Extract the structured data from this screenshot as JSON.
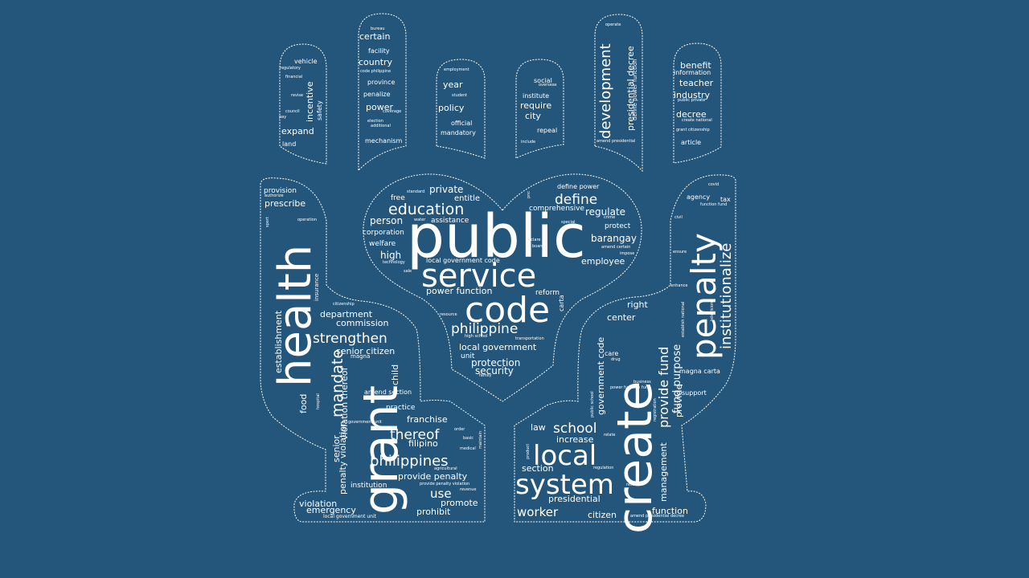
{
  "colors": {
    "background": "#24557a",
    "text": "#ffffff",
    "outline": "#ffffff"
  },
  "shape": "hands-heart-wordcloud",
  "words": [
    {
      "text": "public"
    },
    {
      "text": "service"
    },
    {
      "text": "code"
    },
    {
      "text": "philippine"
    },
    {
      "text": "education"
    },
    {
      "text": "define"
    },
    {
      "text": "regulate"
    },
    {
      "text": "barangay"
    },
    {
      "text": "employee"
    },
    {
      "text": "private"
    },
    {
      "text": "entitle"
    },
    {
      "text": "free"
    },
    {
      "text": "person"
    },
    {
      "text": "corporation"
    },
    {
      "text": "welfare"
    },
    {
      "text": "high"
    },
    {
      "text": "assistance"
    },
    {
      "text": "comprehensive"
    },
    {
      "text": "define power"
    },
    {
      "text": "protect"
    },
    {
      "text": "local government code"
    },
    {
      "text": "power function"
    },
    {
      "text": "reform"
    },
    {
      "text": "local government"
    },
    {
      "text": "unit"
    },
    {
      "text": "protection"
    },
    {
      "text": "security"
    },
    {
      "text": "health"
    },
    {
      "text": "grant"
    },
    {
      "text": "mandate"
    },
    {
      "text": "strengthen"
    },
    {
      "text": "senior citizen"
    },
    {
      "text": "department"
    },
    {
      "text": "commission"
    },
    {
      "text": "prescribe"
    },
    {
      "text": "provision"
    },
    {
      "text": "thereof"
    },
    {
      "text": "philippines"
    },
    {
      "text": "filipino"
    },
    {
      "text": "franchise"
    },
    {
      "text": "practice"
    },
    {
      "text": "amend section"
    },
    {
      "text": "provide penalty"
    },
    {
      "text": "use"
    },
    {
      "text": "promote"
    },
    {
      "text": "prohibit"
    },
    {
      "text": "institution"
    },
    {
      "text": "violation"
    },
    {
      "text": "emergency"
    },
    {
      "text": "food"
    },
    {
      "text": "establishment"
    },
    {
      "text": "violation thereof"
    },
    {
      "text": "senior"
    },
    {
      "text": "penalty violation"
    },
    {
      "text": "child"
    },
    {
      "text": "create"
    },
    {
      "text": "penalty"
    },
    {
      "text": "institutionalize"
    },
    {
      "text": "provide fund"
    },
    {
      "text": "fund purpose"
    },
    {
      "text": "provide"
    },
    {
      "text": "right"
    },
    {
      "text": "center"
    },
    {
      "text": "government code"
    },
    {
      "text": "care"
    },
    {
      "text": "magna carta"
    },
    {
      "text": "support"
    },
    {
      "text": "agency"
    },
    {
      "text": "tax"
    },
    {
      "text": "local"
    },
    {
      "text": "system"
    },
    {
      "text": "school"
    },
    {
      "text": "increase"
    },
    {
      "text": "law"
    },
    {
      "text": "section"
    },
    {
      "text": "worker"
    },
    {
      "text": "presidential"
    },
    {
      "text": "citizen"
    },
    {
      "text": "management"
    },
    {
      "text": "function"
    },
    {
      "text": "vehicle"
    },
    {
      "text": "incentive"
    },
    {
      "text": "safety"
    },
    {
      "text": "expand"
    },
    {
      "text": "land"
    },
    {
      "text": "certain"
    },
    {
      "text": "facility"
    },
    {
      "text": "country"
    },
    {
      "text": "province"
    },
    {
      "text": "penalize"
    },
    {
      "text": "power"
    },
    {
      "text": "mechanism"
    },
    {
      "text": "year"
    },
    {
      "text": "policy"
    },
    {
      "text": "official"
    },
    {
      "text": "mandatory"
    },
    {
      "text": "social"
    },
    {
      "text": "institute"
    },
    {
      "text": "require"
    },
    {
      "text": "city"
    },
    {
      "text": "repeal"
    },
    {
      "text": "development"
    },
    {
      "text": "presidential decree"
    },
    {
      "text": "benefit"
    },
    {
      "text": "information"
    },
    {
      "text": "teacher"
    },
    {
      "text": "industry"
    },
    {
      "text": "decree"
    },
    {
      "text": "article"
    },
    {
      "text": "operate"
    },
    {
      "text": "define power function"
    },
    {
      "text": "amend presidential"
    },
    {
      "text": "bureau"
    },
    {
      "text": "code philippine"
    },
    {
      "text": "election"
    },
    {
      "text": "additional"
    },
    {
      "text": "coverage"
    },
    {
      "text": "employment"
    },
    {
      "text": "student"
    },
    {
      "text": "include"
    },
    {
      "text": "overseas"
    },
    {
      "text": "regulatory"
    },
    {
      "text": "financial"
    },
    {
      "text": "revise"
    },
    {
      "text": "council"
    },
    {
      "text": "pay"
    },
    {
      "text": "public private"
    },
    {
      "text": "create national"
    },
    {
      "text": "grant citizenship"
    },
    {
      "text": "authorize"
    },
    {
      "text": "operation"
    },
    {
      "text": "sport"
    },
    {
      "text": "insurance"
    },
    {
      "text": "citizenship"
    },
    {
      "text": "magna"
    },
    {
      "text": "hospital"
    },
    {
      "text": "government unit"
    },
    {
      "text": "order"
    },
    {
      "text": "basic"
    },
    {
      "text": "medical"
    },
    {
      "text": "agricultural"
    },
    {
      "text": "provide penalty violation"
    },
    {
      "text": "revenue"
    },
    {
      "text": "maintain"
    },
    {
      "text": "local government unit"
    },
    {
      "text": "standard"
    },
    {
      "text": "water"
    },
    {
      "text": "technology"
    },
    {
      "text": "sale"
    },
    {
      "text": "crime"
    },
    {
      "text": "special"
    },
    {
      "text": "declare"
    },
    {
      "text": "board"
    },
    {
      "text": "amend certain"
    },
    {
      "text": "impose"
    },
    {
      "text": "resource"
    },
    {
      "text": "high school"
    },
    {
      "text": "transportation"
    },
    {
      "text": "family"
    },
    {
      "text": "carta"
    },
    {
      "text": "covid"
    },
    {
      "text": "function fund"
    },
    {
      "text": "civil"
    },
    {
      "text": "ensure"
    },
    {
      "text": "enhance"
    },
    {
      "text": "television"
    },
    {
      "text": "establish national"
    },
    {
      "text": "drug"
    },
    {
      "text": "business"
    },
    {
      "text": "power function fund"
    },
    {
      "text": "public school"
    },
    {
      "text": "relate"
    },
    {
      "text": "regulation"
    },
    {
      "text": "research"
    },
    {
      "text": "amend presidential decree"
    },
    {
      "text": "registration"
    },
    {
      "text": "product"
    },
    {
      "text": "pnc"
    }
  ]
}
